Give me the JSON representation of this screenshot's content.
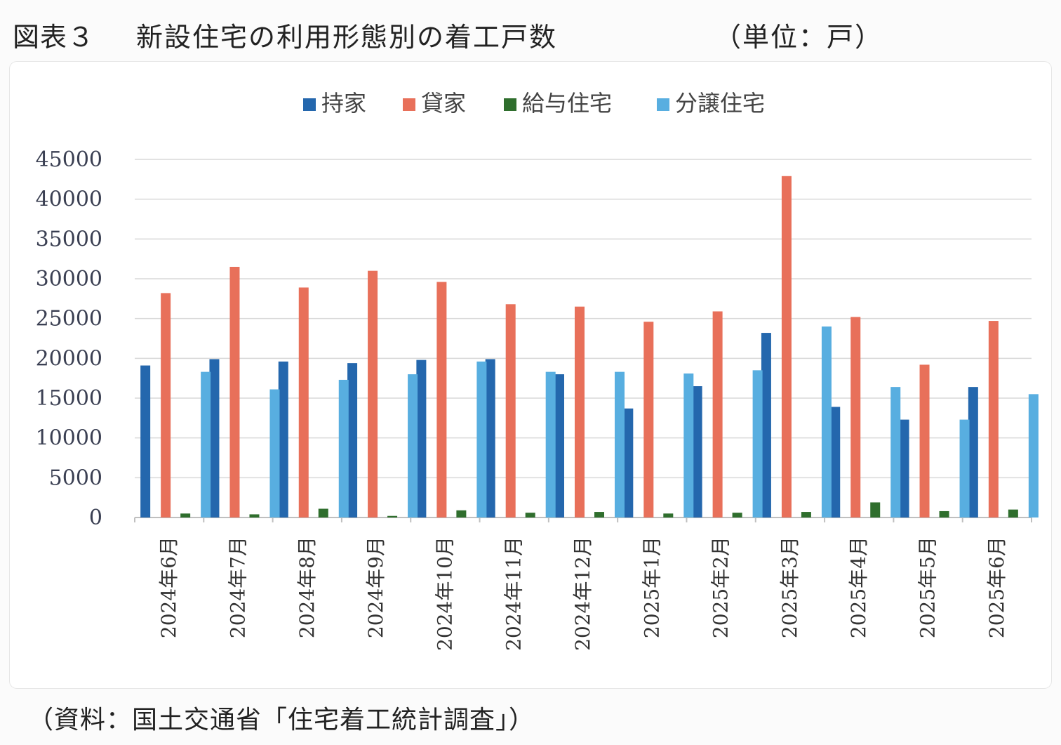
{
  "header": {
    "figure_label": "図表３",
    "title": "新設住宅の利用形態別の着工戸数",
    "unit": "（単位：戸）"
  },
  "source": "（資料：国土交通省「住宅着工統計調査」）",
  "colors": {
    "持家": "#2467ad",
    "貸家": "#e8705a",
    "給与住宅": "#2f6e2d",
    "分譲住宅": "#58aee0",
    "grid": "#d9d9d9",
    "axis": "#bfbfbf"
  },
  "chart_data": {
    "type": "bar",
    "title": "",
    "xlabel": "",
    "ylabel": "",
    "ylim": [
      0,
      45000
    ],
    "yticks": [
      0,
      5000,
      10000,
      15000,
      20000,
      25000,
      30000,
      35000,
      40000,
      45000
    ],
    "grid": true,
    "legend_position": "top-center",
    "categories": [
      "2024年6月",
      "2024年7月",
      "2024年8月",
      "2024年9月",
      "2024年10月",
      "2024年11月",
      "2024年12月",
      "2025年1月",
      "2025年2月",
      "2025年3月",
      "2025年4月",
      "2025年5月",
      "2025年6月"
    ],
    "series": [
      {
        "name": "持家",
        "values": [
          19100,
          19900,
          19600,
          19400,
          19800,
          19900,
          18000,
          13700,
          16500,
          23200,
          13900,
          12300,
          16400
        ]
      },
      {
        "name": "貸家",
        "values": [
          28200,
          31500,
          28900,
          31000,
          29600,
          26800,
          26500,
          24600,
          25900,
          42900,
          25200,
          19200,
          24700
        ]
      },
      {
        "name": "給与住宅",
        "values": [
          500,
          400,
          1100,
          200,
          900,
          600,
          700,
          500,
          600,
          700,
          1900,
          800,
          1000
        ]
      },
      {
        "name": "分譲住宅",
        "values": [
          18300,
          16100,
          17300,
          18000,
          19600,
          18300,
          18300,
          18100,
          18500,
          24000,
          16400,
          12300,
          15500
        ]
      }
    ]
  }
}
